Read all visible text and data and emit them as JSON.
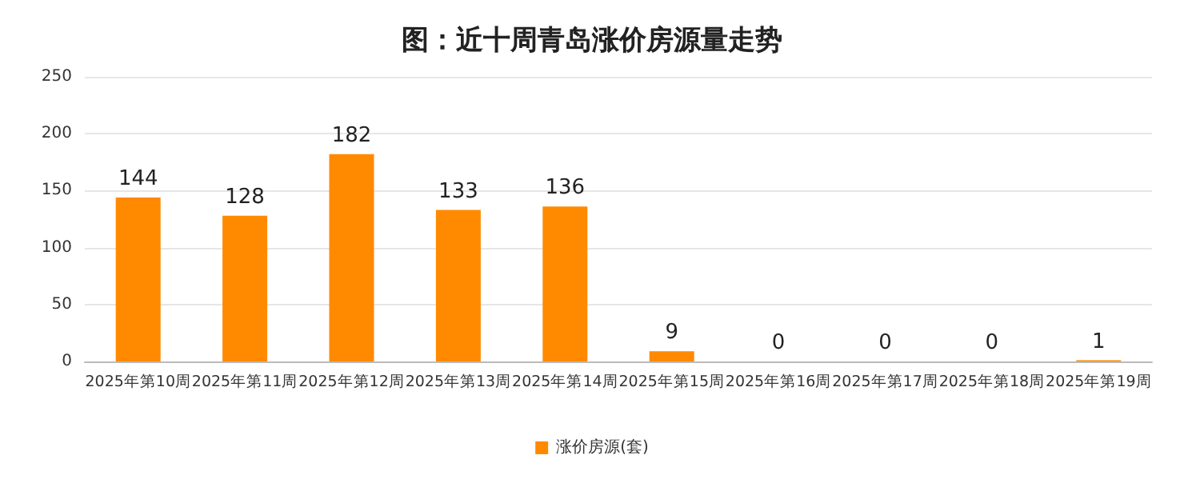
{
  "chart_data": {
    "type": "bar",
    "title": "图：近十周青岛涨价房源量走势",
    "categories": [
      "2025年第10周",
      "2025年第11周",
      "2025年第12周",
      "2025年第13周",
      "2025年第14周",
      "2025年第15周",
      "2025年第16周",
      "2025年第17周",
      "2025年第18周",
      "2025年第19周"
    ],
    "series": [
      {
        "name": "涨价房源(套)",
        "color": "#ff8a00",
        "values": [
          144,
          128,
          182,
          133,
          136,
          9,
          0,
          0,
          0,
          1
        ]
      }
    ],
    "ylim": [
      0,
      250
    ],
    "yticks": [
      0,
      50,
      100,
      150,
      200,
      250
    ],
    "grid": "y",
    "legend": "bottom",
    "data_labels": true
  }
}
